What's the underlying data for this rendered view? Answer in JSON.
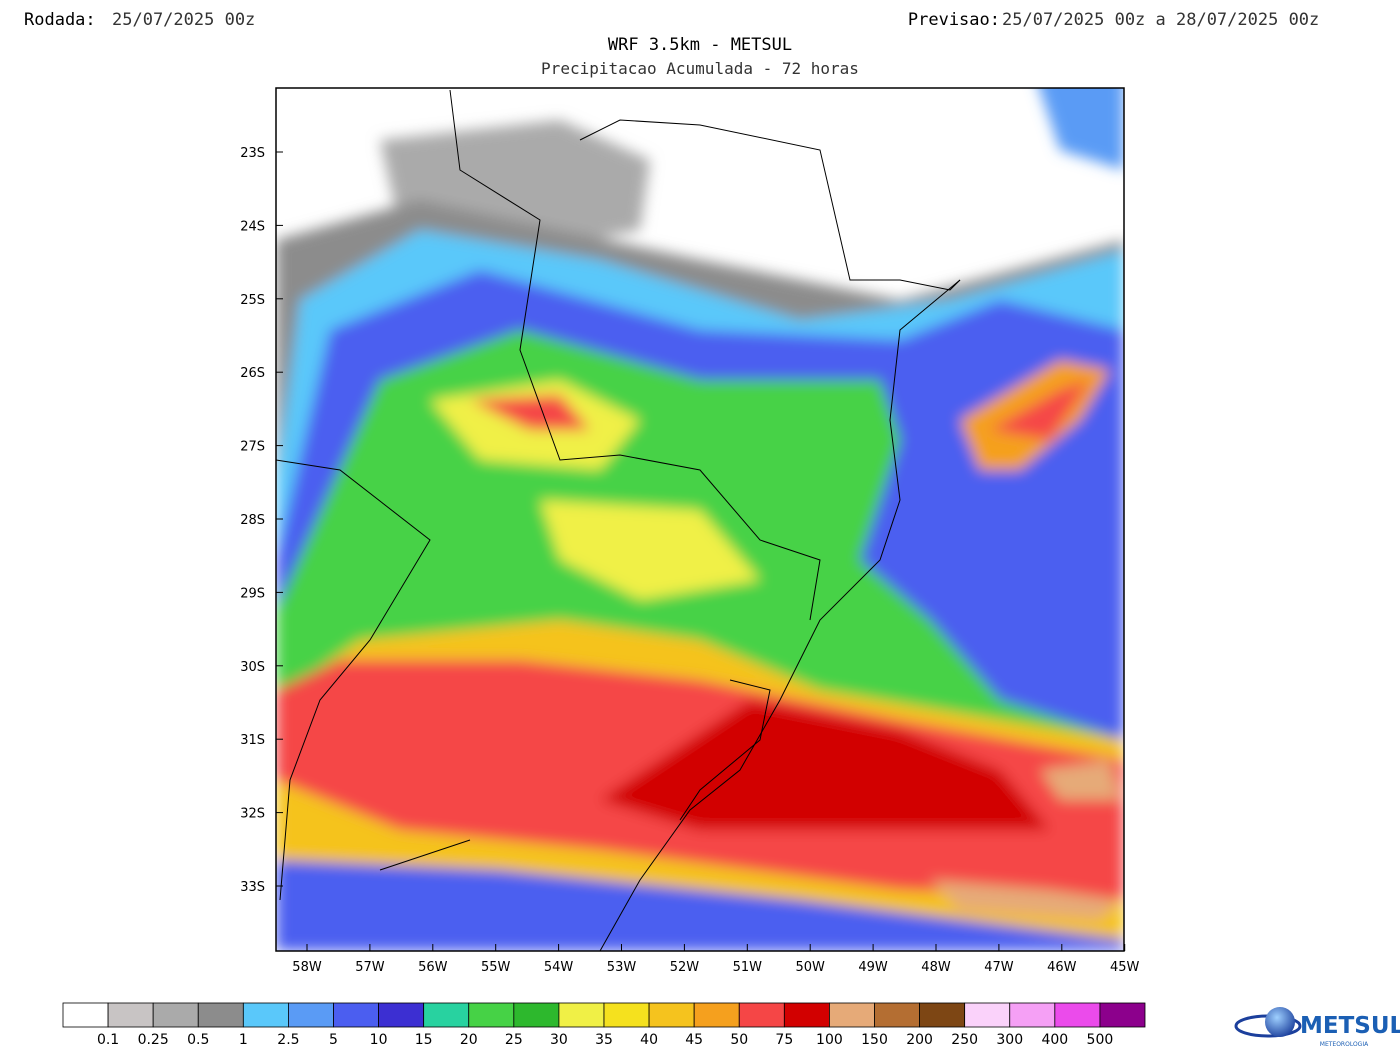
{
  "header": {
    "run_label": "Rodada:",
    "run_value": "25/07/2025 00z",
    "forecast_label": "Previsao:",
    "forecast_value": "25/07/2025 00z a 28/07/2025 00z"
  },
  "title": "WRF 3.5km - METSUL",
  "subtitle": "Precipitacao Acumulada - 72 horas",
  "map": {
    "lat_labels": [
      "23S",
      "24S",
      "25S",
      "26S",
      "27S",
      "28S",
      "29S",
      "30S",
      "31S",
      "32S",
      "33S"
    ],
    "lon_labels": [
      "58W",
      "57W",
      "56W",
      "55W",
      "54W",
      "53W",
      "52W",
      "51W",
      "50W",
      "49W",
      "48W",
      "47W",
      "46W",
      "45W"
    ]
  },
  "colorbar": {
    "colors": [
      "#ffffff",
      "#c8c4c4",
      "#aaaaaa",
      "#8c8c8c",
      "#5ac8fa",
      "#5a9bf5",
      "#4b5ef0",
      "#3c2fd2",
      "#28d2a0",
      "#46d246",
      "#2db82d",
      "#f0f046",
      "#f5e11e",
      "#f5c31e",
      "#f5a01e",
      "#f54646",
      "#d20000",
      "#e6aa78",
      "#b46e32",
      "#7d4614",
      "#fad2fa",
      "#f5a0f5",
      "#eb4beb",
      "#8c008c"
    ],
    "labels": [
      "0.1",
      "0.25",
      "0.5",
      "1",
      "2.5",
      "5",
      "10",
      "15",
      "20",
      "25",
      "30",
      "35",
      "40",
      "45",
      "50",
      "75",
      "100",
      "150",
      "200",
      "250",
      "300",
      "400",
      "500"
    ]
  },
  "logo": {
    "name": "METSUL",
    "tagline": "METEOROLOGIA"
  }
}
